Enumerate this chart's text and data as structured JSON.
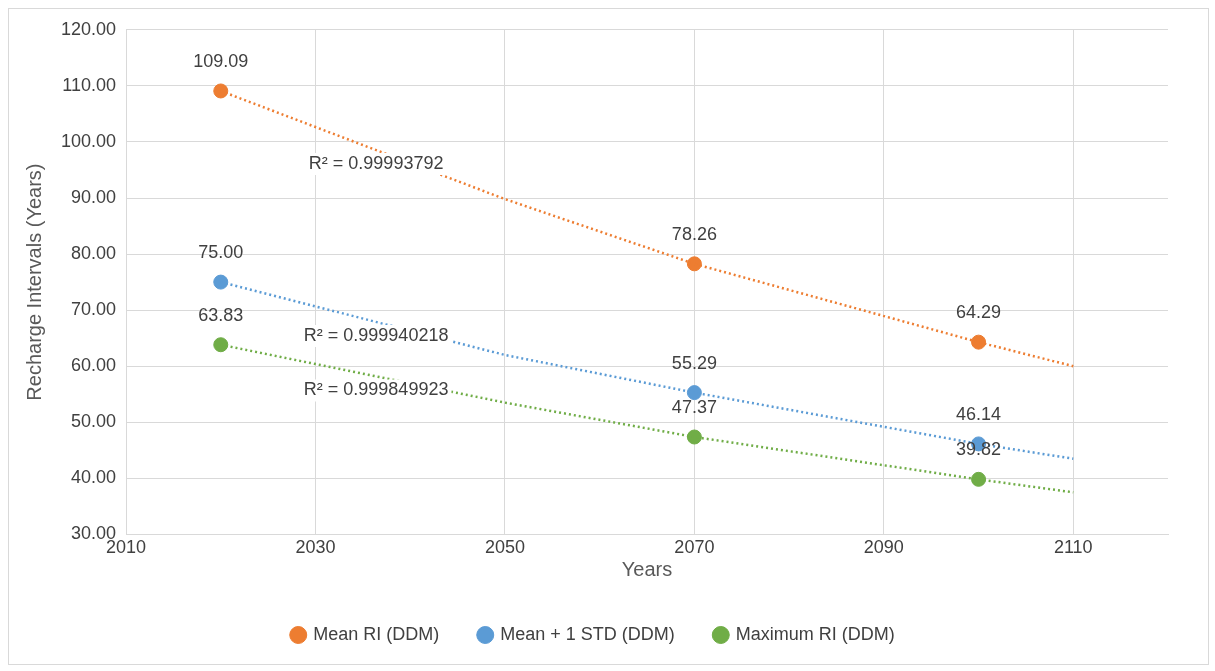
{
  "chart_data": {
    "type": "scatter",
    "xlabel": "Years",
    "ylabel": "Recharge Intervals (Years)",
    "xlim": [
      2010,
      2120
    ],
    "xticks": [
      2010,
      2030,
      2050,
      2070,
      2090,
      2110
    ],
    "ylim": [
      30,
      120
    ],
    "yticks": [
      {
        "value": 30,
        "label": "30.00"
      },
      {
        "value": 40,
        "label": "40.00"
      },
      {
        "value": 50,
        "label": "50.00"
      },
      {
        "value": 60,
        "label": "60.00"
      },
      {
        "value": 70,
        "label": "70.00"
      },
      {
        "value": 80,
        "label": "80.00"
      },
      {
        "value": 90,
        "label": "90.00"
      },
      {
        "value": 100,
        "label": "100.00"
      },
      {
        "value": 110,
        "label": "110.00"
      },
      {
        "value": 120,
        "label": "120.00"
      }
    ],
    "grid": true,
    "legend": "bottom",
    "marker": "circle",
    "series": [
      {
        "type": "line",
        "color": "#ed7d31",
        "line_style": "dotted",
        "marker": "none",
        "x": [
          2020,
          2050,
          2070,
          2100,
          2110
        ],
        "values": [
          109.09,
          89.8,
          78.26,
          64.29,
          60
        ]
      },
      {
        "type": "line",
        "color": "#5b9bd5",
        "line_style": "dotted",
        "marker": "none",
        "x": [
          2020,
          2050,
          2070,
          2100,
          2110
        ],
        "values": [
          75,
          62,
          55.29,
          46.14,
          43.5
        ]
      },
      {
        "type": "line",
        "color": "#70ad47",
        "line_style": "dotted",
        "marker": "none",
        "x": [
          2020,
          2050,
          2070,
          2100,
          2110
        ],
        "values": [
          63.83,
          53.5,
          47.37,
          39.82,
          37.5
        ]
      },
      {
        "type": "scatter",
        "name": "Mean RI (DDM)",
        "color": "#ed7d31",
        "x": [
          2020,
          2070,
          2100
        ],
        "values": [
          109.09,
          78.26,
          64.29
        ],
        "value_labels": [
          "109.09",
          "78.26",
          "64.29"
        ]
      },
      {
        "type": "scatter",
        "name": "Mean + 1 STD (DDM)",
        "color": "#5b9bd5",
        "x": [
          2020,
          2070,
          2100
        ],
        "values": [
          75,
          55.29,
          46.14
        ],
        "value_labels": [
          "75.00",
          "55.29",
          "46.14"
        ]
      },
      {
        "type": "scatter",
        "name": "Maximum RI (DDM)",
        "color": "#70ad47",
        "x": [
          2020,
          2070,
          2100
        ],
        "values": [
          63.83,
          47.37,
          39.82
        ],
        "value_labels": [
          "63.83",
          "47.37",
          "39.82"
        ]
      }
    ],
    "annotations": [
      "R² = 0.99993792",
      "R² = 0.999940218",
      "R² = 0.999849923"
    ]
  }
}
